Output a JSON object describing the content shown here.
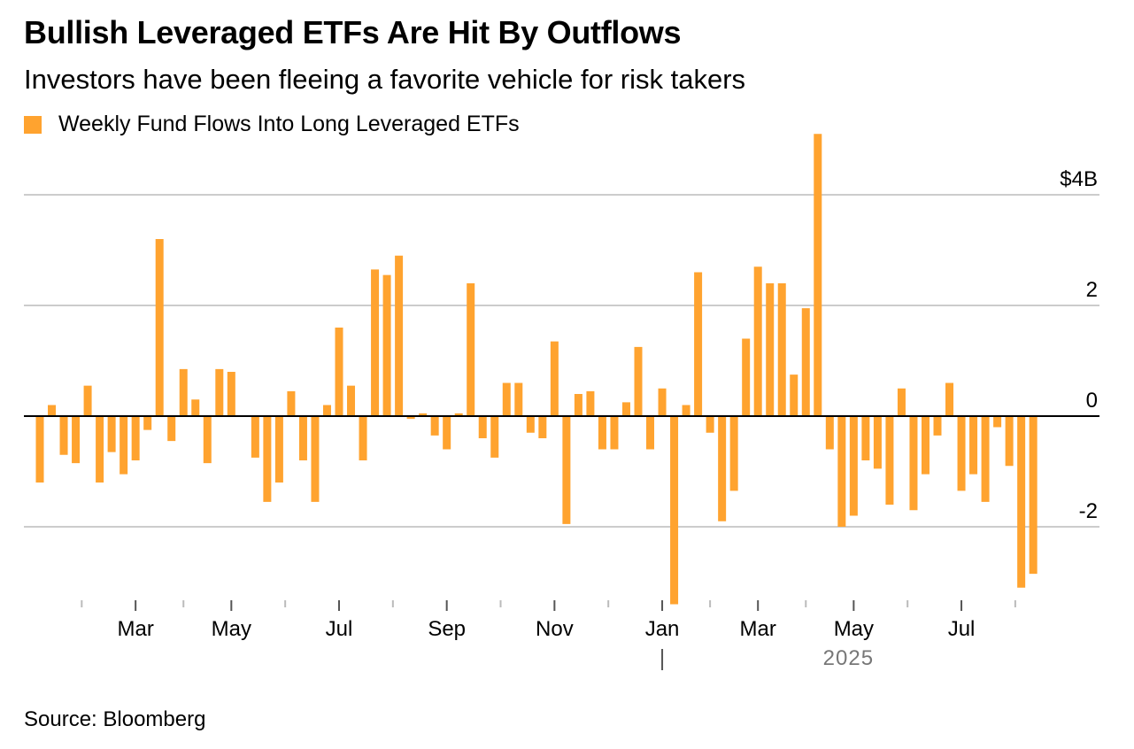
{
  "header": {
    "title": "Bullish Leveraged ETFs Are Hit By Outflows",
    "subtitle": "Investors have been fleeing a favorite vehicle for risk takers"
  },
  "footer": {
    "source": "Source: Bloomberg"
  },
  "colors": {
    "bar": "#FFA32F",
    "grid": "#cccccc",
    "zero": "#000000",
    "tick": "#bbbbbb"
  },
  "chart_data": {
    "type": "bar",
    "series": [
      {
        "name": "Weekly Fund Flows Into Long Leveraged ETFs",
        "unit": "$B",
        "values": [
          -1.2,
          0.2,
          -0.7,
          -0.85,
          0.55,
          -1.2,
          -0.65,
          -1.05,
          -0.8,
          -0.25,
          3.2,
          -0.45,
          0.85,
          0.3,
          -0.85,
          0.85,
          0.8,
          0.0,
          -0.75,
          -1.55,
          -1.2,
          0.45,
          -0.8,
          -1.55,
          0.2,
          1.6,
          0.55,
          -0.8,
          2.65,
          2.55,
          2.9,
          -0.05,
          0.05,
          -0.35,
          -0.6,
          0.05,
          2.4,
          -0.4,
          -0.75,
          0.6,
          0.6,
          -0.3,
          -0.4,
          1.35,
          -1.95,
          0.4,
          0.45,
          -0.6,
          -0.6,
          0.25,
          1.25,
          -0.6,
          0.5,
          -3.4,
          0.2,
          2.6,
          -0.3,
          -1.9,
          -1.35,
          1.4,
          2.7,
          2.4,
          2.4,
          0.75,
          1.95,
          5.1,
          -0.6,
          -2.0,
          -1.8,
          -0.8,
          -0.95,
          -1.6,
          0.5,
          -1.7,
          -1.05,
          -0.35,
          0.6,
          -1.35,
          -1.05,
          -1.55,
          -0.2,
          -0.9,
          -3.1,
          -2.85
        ]
      }
    ],
    "y_ticks": [
      {
        "value": 4,
        "label": "$4B"
      },
      {
        "value": 2,
        "label": "2"
      },
      {
        "value": 0,
        "label": "0"
      },
      {
        "value": -2,
        "label": "-2"
      }
    ],
    "ylim": [
      -3.4,
      5.1
    ],
    "x_month_labels": [
      {
        "bar_index": 8,
        "label": "Mar"
      },
      {
        "bar_index": 16,
        "label": "May"
      },
      {
        "bar_index": 25,
        "label": "Jul"
      },
      {
        "bar_index": 34,
        "label": "Sep"
      },
      {
        "bar_index": 43,
        "label": "Nov"
      },
      {
        "bar_index": 52,
        "label": "Jan"
      },
      {
        "bar_index": 60,
        "label": "Mar"
      },
      {
        "bar_index": 68,
        "label": "May"
      },
      {
        "bar_index": 77,
        "label": "Jul"
      }
    ],
    "x_minor_tick_indices": [
      3.5,
      12,
      20.5,
      29.5,
      38.5,
      47.5,
      56,
      64,
      72.5,
      81.5
    ],
    "year_label": {
      "bar_index": 68,
      "label": "2025",
      "divider_index": 52
    },
    "grid": true,
    "legend_position": "top-left"
  }
}
